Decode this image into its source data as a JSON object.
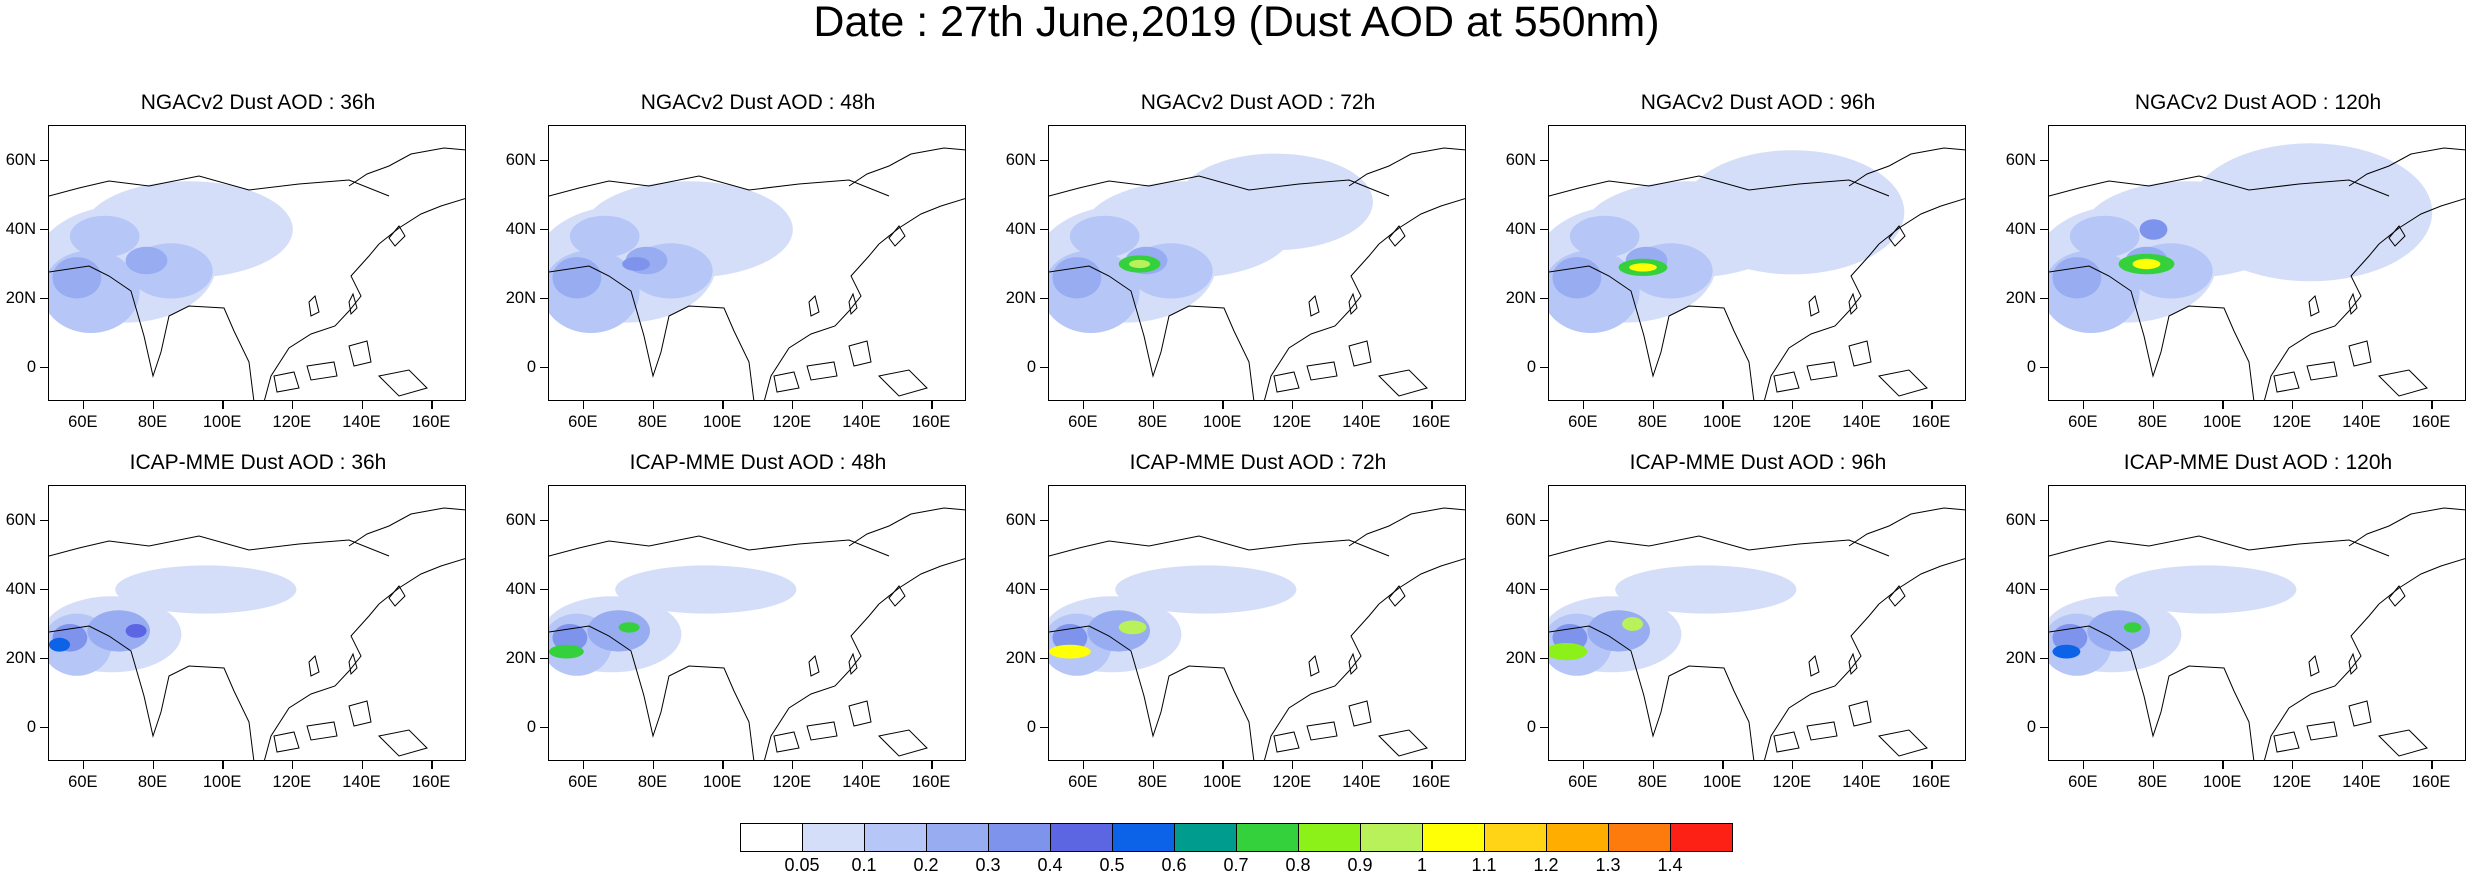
{
  "title": "Date : 27th June,2019 (Dust AOD at 550nm)",
  "panels": [
    {
      "title": "NGACv2 Dust AOD : 36h",
      "model": "NGACv2",
      "lead": "36h"
    },
    {
      "title": "NGACv2 Dust AOD : 48h",
      "model": "NGACv2",
      "lead": "48h"
    },
    {
      "title": "NGACv2 Dust AOD : 72h",
      "model": "NGACv2",
      "lead": "72h"
    },
    {
      "title": "NGACv2 Dust AOD : 96h",
      "model": "NGACv2",
      "lead": "96h"
    },
    {
      "title": "NGACv2 Dust AOD : 120h",
      "model": "NGACv2",
      "lead": "120h"
    },
    {
      "title": "ICAP-MME Dust AOD : 36h",
      "model": "ICAP-MME",
      "lead": "36h"
    },
    {
      "title": "ICAP-MME Dust AOD : 48h",
      "model": "ICAP-MME",
      "lead": "48h"
    },
    {
      "title": "ICAP-MME Dust AOD : 72h",
      "model": "ICAP-MME",
      "lead": "72h"
    },
    {
      "title": "ICAP-MME Dust AOD : 96h",
      "model": "ICAP-MME",
      "lead": "96h"
    },
    {
      "title": "ICAP-MME Dust AOD : 120h",
      "model": "ICAP-MME",
      "lead": "120h"
    }
  ],
  "axes": {
    "lat_ticks": [
      {
        "value": 60,
        "label": "60N"
      },
      {
        "value": 40,
        "label": "40N"
      },
      {
        "value": 20,
        "label": "20N"
      },
      {
        "value": 0,
        "label": "0"
      }
    ],
    "lon_ticks": [
      {
        "value": 60,
        "label": "60E"
      },
      {
        "value": 80,
        "label": "80E"
      },
      {
        "value": 100,
        "label": "100E"
      },
      {
        "value": 120,
        "label": "120E"
      },
      {
        "value": 140,
        "label": "140E"
      },
      {
        "value": 160,
        "label": "160E"
      }
    ],
    "lon_range": [
      50,
      170
    ],
    "lat_range": [
      -10,
      70
    ]
  },
  "colorbar": {
    "colors": [
      "#ffffff",
      "#d5def9",
      "#b6c6f6",
      "#97acf1",
      "#7e93ec",
      "#5c65e2",
      "#0d63e8",
      "#009d8e",
      "#35d13c",
      "#8cf019",
      "#b9f15a",
      "#ffff06",
      "#ffd316",
      "#ffae00",
      "#fc7b0c",
      "#fc2015"
    ],
    "labels": [
      "0.05",
      "0.1",
      "0.2",
      "0.3",
      "0.4",
      "0.5",
      "0.6",
      "0.7",
      "0.8",
      "0.9",
      "1",
      "1.1",
      "1.2",
      "1.3",
      "1.4"
    ]
  }
}
